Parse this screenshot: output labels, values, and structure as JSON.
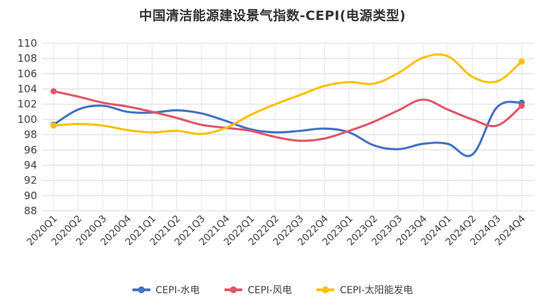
{
  "chart_data": {
    "type": "line",
    "title": "中国清洁能源建设景气指数-CEPI(电源类型)",
    "xlabel": "",
    "ylabel": "",
    "ylim": [
      88,
      110
    ],
    "yticks": [
      88,
      90,
      92,
      94,
      96,
      98,
      100,
      102,
      104,
      106,
      108,
      110
    ],
    "grid": true,
    "legend_position": "bottom",
    "categories": [
      "2020Q1",
      "2020Q2",
      "2020Q3",
      "2020Q4",
      "2021Q1",
      "2021Q2",
      "2021Q3",
      "2021Q4",
      "2022Q1",
      "2022Q2",
      "2022Q3",
      "2022Q4",
      "2023Q1",
      "2023Q2",
      "2023Q3",
      "2023Q4",
      "2024Q1",
      "2024Q2",
      "2024Q3",
      "2024Q4"
    ],
    "series": [
      {
        "name": "CEPI-水电",
        "color": "#4472C4",
        "values": [
          99.3,
          101.3,
          101.8,
          101.0,
          100.9,
          101.2,
          100.8,
          99.8,
          98.7,
          98.3,
          98.5,
          98.8,
          98.3,
          96.6,
          96.1,
          96.8,
          96.8,
          95.4,
          101.6,
          102.2
        ]
      },
      {
        "name": "CEPI-风电",
        "color": "#E0566A",
        "values": [
          103.7,
          103.0,
          102.2,
          101.7,
          101.0,
          100.2,
          99.3,
          98.9,
          98.5,
          97.7,
          97.2,
          97.5,
          98.5,
          99.7,
          101.2,
          102.6,
          101.3,
          100.0,
          99.2,
          101.8
        ]
      },
      {
        "name": "CEPI-太阳能发电",
        "color": "#FFC000",
        "values": [
          99.2,
          99.4,
          99.2,
          98.6,
          98.3,
          98.5,
          98.1,
          98.9,
          100.6,
          102.0,
          103.2,
          104.4,
          104.9,
          104.7,
          106.1,
          108.1,
          108.3,
          105.6,
          105.0,
          107.6
        ]
      }
    ]
  }
}
